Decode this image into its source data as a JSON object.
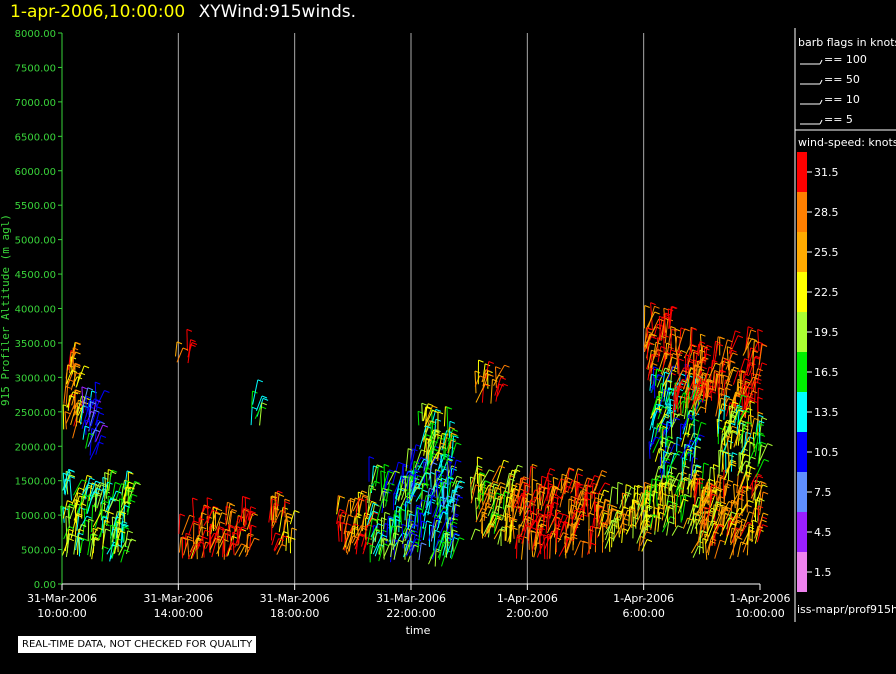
{
  "header": {
    "datetime": "1-apr-2006,10:00:00",
    "plot_name": "XYWind:915winds."
  },
  "footer": {
    "qc_notice": "REAL-TIME DATA, NOT CHECKED FOR QUALITY",
    "source_label": "iss-mapr/prof915h"
  },
  "legend": {
    "barb_title": "barb flags in knots",
    "barb_items": [
      "== 100",
      "== 50",
      "== 10",
      "== 5"
    ],
    "speed_title": "wind-speed: knots",
    "speed_bins": [
      {
        "label": "31.5",
        "color": "#ff0000"
      },
      {
        "label": "28.5",
        "color": "#ff7f00"
      },
      {
        "label": "25.5",
        "color": "#ffaa00"
      },
      {
        "label": "22.5",
        "color": "#ffff00"
      },
      {
        "label": "19.5",
        "color": "#aaff33"
      },
      {
        "label": "16.5",
        "color": "#00ee00"
      },
      {
        "label": "13.5",
        "color": "#00ffff"
      },
      {
        "label": "10.5",
        "color": "#0000ff"
      },
      {
        "label": "7.5",
        "color": "#5f8fff"
      },
      {
        "label": "4.5",
        "color": "#9a1fff"
      },
      {
        "label": "1.5",
        "color": "#ee82ee"
      }
    ]
  },
  "chart_data": {
    "type": "scatter",
    "xlabel": "time",
    "ylabel": "915 Profiler Altitude (m agl)",
    "ylim": [
      0,
      8000
    ],
    "xlim_hours": [
      0,
      24
    ],
    "yticks": [
      "0.00",
      "500.00",
      "1000.00",
      "1500.00",
      "2000.00",
      "2500.00",
      "3000.00",
      "3500.00",
      "4000.00",
      "4500.00",
      "5000.00",
      "5500.00",
      "6000.00",
      "6500.00",
      "7000.00",
      "7500.00",
      "8000.00"
    ],
    "xticks": [
      {
        "date": "31-Mar-2006",
        "time": "10:00:00"
      },
      {
        "date": "31-Mar-2006",
        "time": "14:00:00"
      },
      {
        "date": "31-Mar-2006",
        "time": "18:00:00"
      },
      {
        "date": "31-Mar-2006",
        "time": "22:00:00"
      },
      {
        "date": "1-Apr-2006",
        "time": "2:00:00"
      },
      {
        "date": "1-Apr-2006",
        "time": "6:00:00"
      },
      {
        "date": "1-Apr-2006",
        "time": "10:00:00"
      }
    ],
    "grid": "vertical",
    "clusters": [
      {
        "t0": 0.0,
        "t1": 0.6,
        "alt0": 2100,
        "alt1": 3200,
        "speed": 26
      },
      {
        "t0": 0.0,
        "t1": 2.3,
        "alt0": 300,
        "alt1": 1400,
        "speed": 18
      },
      {
        "t0": 0.6,
        "t1": 1.2,
        "alt0": 1800,
        "alt1": 2600,
        "speed": 10
      },
      {
        "t0": 3.9,
        "t1": 4.4,
        "alt0": 3200,
        "alt1": 3400,
        "speed": 31
      },
      {
        "t0": 4.0,
        "t1": 6.5,
        "alt0": 350,
        "alt1": 950,
        "speed": 28
      },
      {
        "t0": 6.5,
        "t1": 6.8,
        "alt0": 2300,
        "alt1": 2700,
        "speed": 17
      },
      {
        "t0": 7.1,
        "t1": 7.9,
        "alt0": 400,
        "alt1": 1000,
        "speed": 27
      },
      {
        "t0": 9.4,
        "t1": 10.5,
        "alt0": 400,
        "alt1": 1100,
        "speed": 28
      },
      {
        "t0": 10.5,
        "t1": 12.0,
        "alt0": 300,
        "alt1": 1500,
        "speed": 15
      },
      {
        "t0": 11.8,
        "t1": 13.5,
        "alt0": 250,
        "alt1": 1700,
        "speed": 14
      },
      {
        "t0": 12.2,
        "t1": 13.4,
        "alt0": 1700,
        "alt1": 2400,
        "speed": 20
      },
      {
        "t0": 14.2,
        "t1": 15.0,
        "alt0": 2600,
        "alt1": 3000,
        "speed": 27
      },
      {
        "t0": 14.0,
        "t1": 15.5,
        "alt0": 550,
        "alt1": 1500,
        "speed": 23
      },
      {
        "t0": 15.5,
        "t1": 18.5,
        "alt0": 350,
        "alt1": 1400,
        "speed": 30
      },
      {
        "t0": 18.3,
        "t1": 20.0,
        "alt0": 450,
        "alt1": 1200,
        "speed": 24
      },
      {
        "t0": 20.0,
        "t1": 21.0,
        "alt0": 2900,
        "alt1": 3800,
        "speed": 30
      },
      {
        "t0": 20.0,
        "t1": 22.0,
        "alt0": 700,
        "alt1": 1400,
        "speed": 21
      },
      {
        "t0": 20.2,
        "t1": 21.8,
        "alt0": 1500,
        "alt1": 2900,
        "speed": 16
      },
      {
        "t0": 21.0,
        "t1": 24.0,
        "alt0": 2400,
        "alt1": 3400,
        "speed": 30
      },
      {
        "t0": 21.6,
        "t1": 24.0,
        "alt0": 350,
        "alt1": 1400,
        "speed": 26
      },
      {
        "t0": 22.5,
        "t1": 24.0,
        "alt0": 1500,
        "alt1": 2400,
        "speed": 19
      }
    ]
  }
}
